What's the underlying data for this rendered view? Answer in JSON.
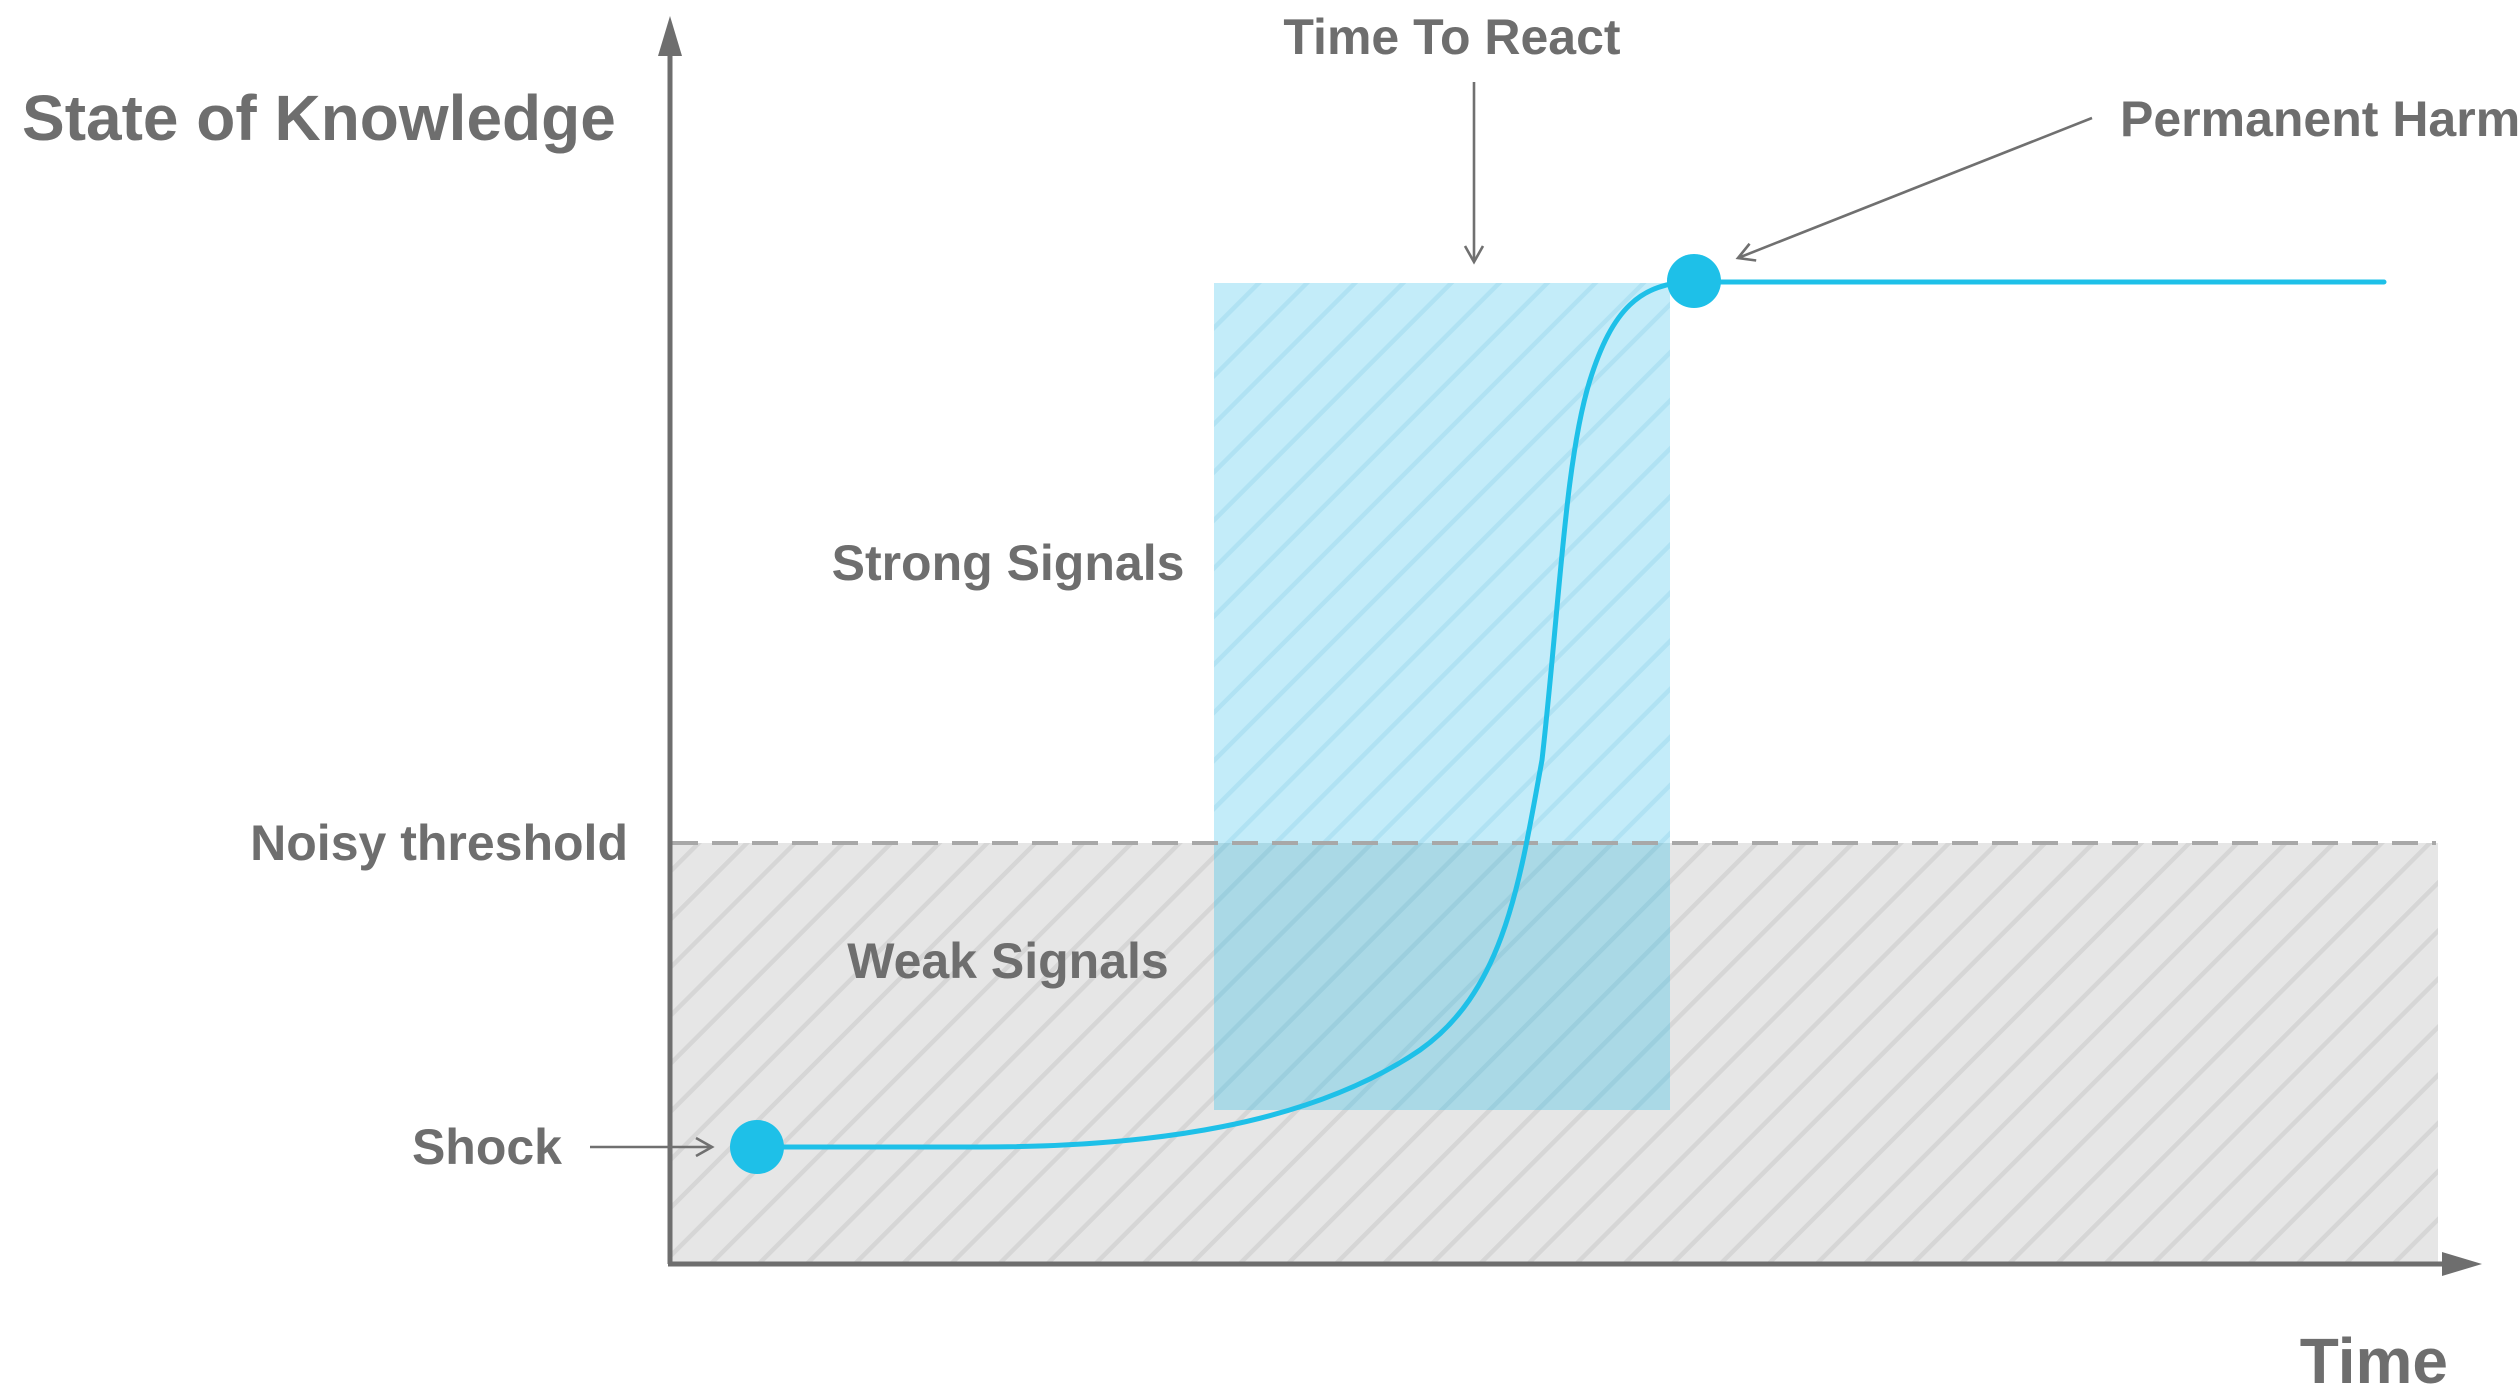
{
  "labels": {
    "y_axis": "State of Knowledge",
    "x_axis": "Time",
    "time_to_react": "Time To React",
    "permanent_harm": "Permanent Harm",
    "strong_signals": "Strong Signals",
    "weak_signals": "Weak Signals",
    "noisy_threshold": "Noisy threshold",
    "shock": "Shock"
  },
  "colors": {
    "curve": "#1ec0e8",
    "reaction_window": "#bfe9f7",
    "weak_region": "#e6e6e6",
    "axis": "#6e6e6e",
    "text": "#6e6e6e",
    "threshold_line": "#a8a8a8"
  },
  "icons": {
    "shock_marker": "filled-circle",
    "harm_marker": "filled-circle"
  }
}
